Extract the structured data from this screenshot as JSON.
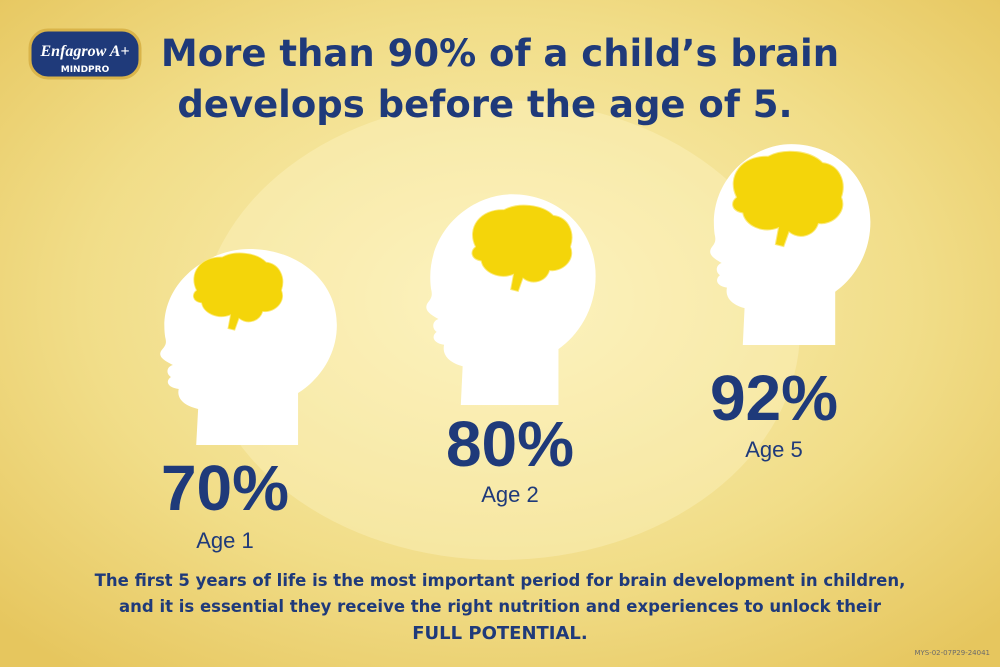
{
  "logo": {
    "brand": "Enfagrow A+",
    "line": "MINDPRO"
  },
  "title": [
    "More than 90% of a child’s brain",
    "develops before the age of 5."
  ],
  "stages": [
    {
      "percent": "70%",
      "age": "Age 1"
    },
    {
      "percent": "80%",
      "age": "Age 2"
    },
    {
      "percent": "92%",
      "age": "Age 5"
    }
  ],
  "footer": {
    "lines": [
      "The first 5 years of life is the most important period for brain development in children,",
      "and it is essential they receive the right nutrition and experiences to unlock their"
    ],
    "emphasis": "FULL POTENTIAL."
  },
  "code": "MYS-02-07P29-24041"
}
